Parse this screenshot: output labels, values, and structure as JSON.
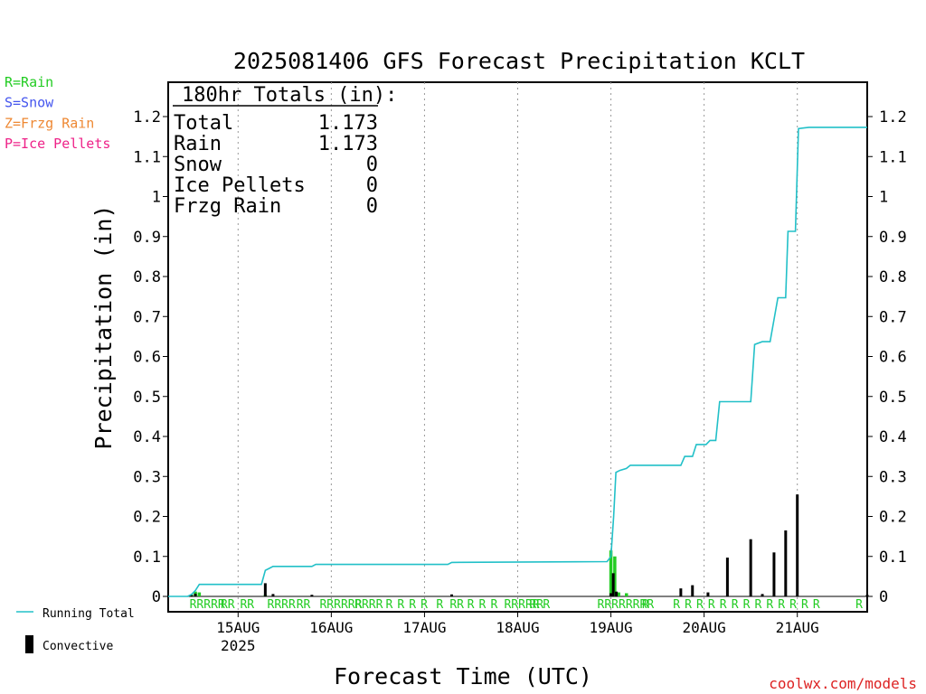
{
  "chart_data": {
    "type": "bar",
    "title": "2025081406 GFS Forecast Precipitation KCLT",
    "xlabel": "Forecast Time (UTC)",
    "ylabel": "Precipitation (in)",
    "ylim": [
      0,
      1.3
    ],
    "xlim_hours": [
      0,
      180
    ],
    "yticks": [
      "0",
      "0.1",
      "0.2",
      "0.3",
      "0.4",
      "0.5",
      "0.6",
      "0.7",
      "0.8",
      "0.9",
      "1",
      "1.1",
      "1.2"
    ],
    "day_ticks": [
      {
        "hour": 18,
        "label": "15AUG",
        "sublabel": "2025"
      },
      {
        "hour": 42,
        "label": "16AUG",
        "sublabel": ""
      },
      {
        "hour": 66,
        "label": "17AUG",
        "sublabel": ""
      },
      {
        "hour": 90,
        "label": "18AUG",
        "sublabel": ""
      },
      {
        "hour": 114,
        "label": "19AUG",
        "sublabel": ""
      },
      {
        "hour": 138,
        "label": "20AUG",
        "sublabel": ""
      },
      {
        "hour": 162,
        "label": "21AUG",
        "sublabel": ""
      }
    ],
    "grid": "dotted vertical at day boundaries",
    "legend_position": "left",
    "totals_box": {
      "title": "180hr Totals (in):",
      "rows": [
        {
          "label": "Total",
          "value": "1.173"
        },
        {
          "label": "Rain",
          "value": "1.173"
        },
        {
          "label": "Snow",
          "value": "0"
        },
        {
          "label": "Ice Pellets",
          "value": "0"
        },
        {
          "label": "Frzg Rain",
          "value": "0"
        }
      ]
    },
    "ptype_legend": [
      {
        "text": "R=Rain",
        "color": "#22cc22"
      },
      {
        "text": "S=Snow",
        "color": "#4455ee"
      },
      {
        "text": "Z=Frzg Rain",
        "color": "#ee8833"
      },
      {
        "text": "P=Ice Pellets",
        "color": "#ee2288"
      }
    ],
    "series_legend": [
      {
        "text": "Running Total",
        "color": "#22c0c8"
      },
      {
        "text": "Convective",
        "color": "#000000"
      }
    ],
    "running_total": {
      "name": "Running Total",
      "color": "#22c0c8",
      "points": [
        [
          0,
          0
        ],
        [
          5,
          0
        ],
        [
          6,
          0.005
        ],
        [
          7,
          0.015
        ],
        [
          8,
          0.03
        ],
        [
          9,
          0.03
        ],
        [
          24,
          0.03
        ],
        [
          25,
          0.065
        ],
        [
          26,
          0.07
        ],
        [
          27,
          0.075
        ],
        [
          37,
          0.075
        ],
        [
          38,
          0.08
        ],
        [
          72,
          0.08
        ],
        [
          73,
          0.085
        ],
        [
          113,
          0.087
        ],
        [
          114,
          0.1
        ],
        [
          114.7,
          0.2
        ],
        [
          115.3,
          0.31
        ],
        [
          116.3,
          0.315
        ],
        [
          118,
          0.32
        ],
        [
          119,
          0.328
        ],
        [
          132,
          0.328
        ],
        [
          133,
          0.35
        ],
        [
          135,
          0.35
        ],
        [
          136,
          0.38
        ],
        [
          138.5,
          0.38
        ],
        [
          139.5,
          0.39
        ],
        [
          141,
          0.39
        ],
        [
          142,
          0.487
        ],
        [
          150,
          0.487
        ],
        [
          151,
          0.63
        ],
        [
          153,
          0.637
        ],
        [
          155,
          0.637
        ],
        [
          157,
          0.747
        ],
        [
          159,
          0.747
        ],
        [
          159.6,
          0.913
        ],
        [
          161.5,
          0.913
        ],
        [
          162.3,
          1.17
        ],
        [
          165,
          1.173
        ],
        [
          180,
          1.173
        ]
      ]
    },
    "bar_series": [
      {
        "name": "Rain",
        "color": "#22cc22",
        "hours": [
          6,
          7,
          8,
          25,
          114,
          115,
          116,
          118
        ],
        "values": [
          0.005,
          0.012,
          0.01,
          0.004,
          0.115,
          0.1,
          0.01,
          0.008
        ]
      },
      {
        "name": "Convective",
        "color": "#000000",
        "hours": [
          6,
          7,
          25,
          27,
          37,
          73,
          114,
          114.6,
          115.4,
          132,
          135,
          139,
          144,
          150,
          153,
          156,
          159,
          162,
          180
        ],
        "values": [
          0.003,
          0.007,
          0.033,
          0.006,
          0.004,
          0.005,
          0.008,
          0.058,
          0.012,
          0.02,
          0.028,
          0.01,
          0.097,
          0.143,
          0.006,
          0.11,
          0.165,
          0.255,
          0.004
        ]
      }
    ],
    "ptype_markers": {
      "color": "#22cc22",
      "labels": [
        {
          "hour": 5.5,
          "text": "RRRRR"
        },
        {
          "hour": 13.5,
          "text": "RR"
        },
        {
          "hour": 18.5,
          "text": "RR"
        },
        {
          "hour": 25.5,
          "text": "RRRR"
        },
        {
          "hour": 33,
          "text": "RR"
        },
        {
          "hour": 39,
          "text": "RRRRRR"
        },
        {
          "hour": 48,
          "text": "RRRR"
        },
        {
          "hour": 56,
          "text": "R"
        },
        {
          "hour": 59,
          "text": "R"
        },
        {
          "hour": 62,
          "text": "R"
        },
        {
          "hour": 65,
          "text": "R"
        },
        {
          "hour": 69,
          "text": "R"
        },
        {
          "hour": 72.5,
          "text": "RR"
        },
        {
          "hour": 77,
          "text": "R"
        },
        {
          "hour": 80,
          "text": "R"
        },
        {
          "hour": 83,
          "text": "R"
        },
        {
          "hour": 86.5,
          "text": "RRRRR"
        },
        {
          "hour": 93,
          "text": "RR"
        },
        {
          "hour": 96.5,
          "text": "R"
        },
        {
          "hour": 110.5,
          "text": "RRRRRRRR"
        },
        {
          "hour": 122,
          "text": "R"
        },
        {
          "hour": 130,
          "text": "R"
        },
        {
          "hour": 133,
          "text": "R"
        },
        {
          "hour": 136,
          "text": "R"
        },
        {
          "hour": 139,
          "text": "R"
        },
        {
          "hour": 142,
          "text": "R"
        },
        {
          "hour": 145,
          "text": "R"
        },
        {
          "hour": 148,
          "text": "R"
        },
        {
          "hour": 151,
          "text": "R"
        },
        {
          "hour": 154,
          "text": "R"
        },
        {
          "hour": 157,
          "text": "R"
        },
        {
          "hour": 160,
          "text": "R"
        },
        {
          "hour": 163,
          "text": "R"
        },
        {
          "hour": 166,
          "text": "R"
        },
        {
          "hour": 177,
          "text": "R"
        }
      ]
    }
  },
  "credit": "coolwx.com/models"
}
